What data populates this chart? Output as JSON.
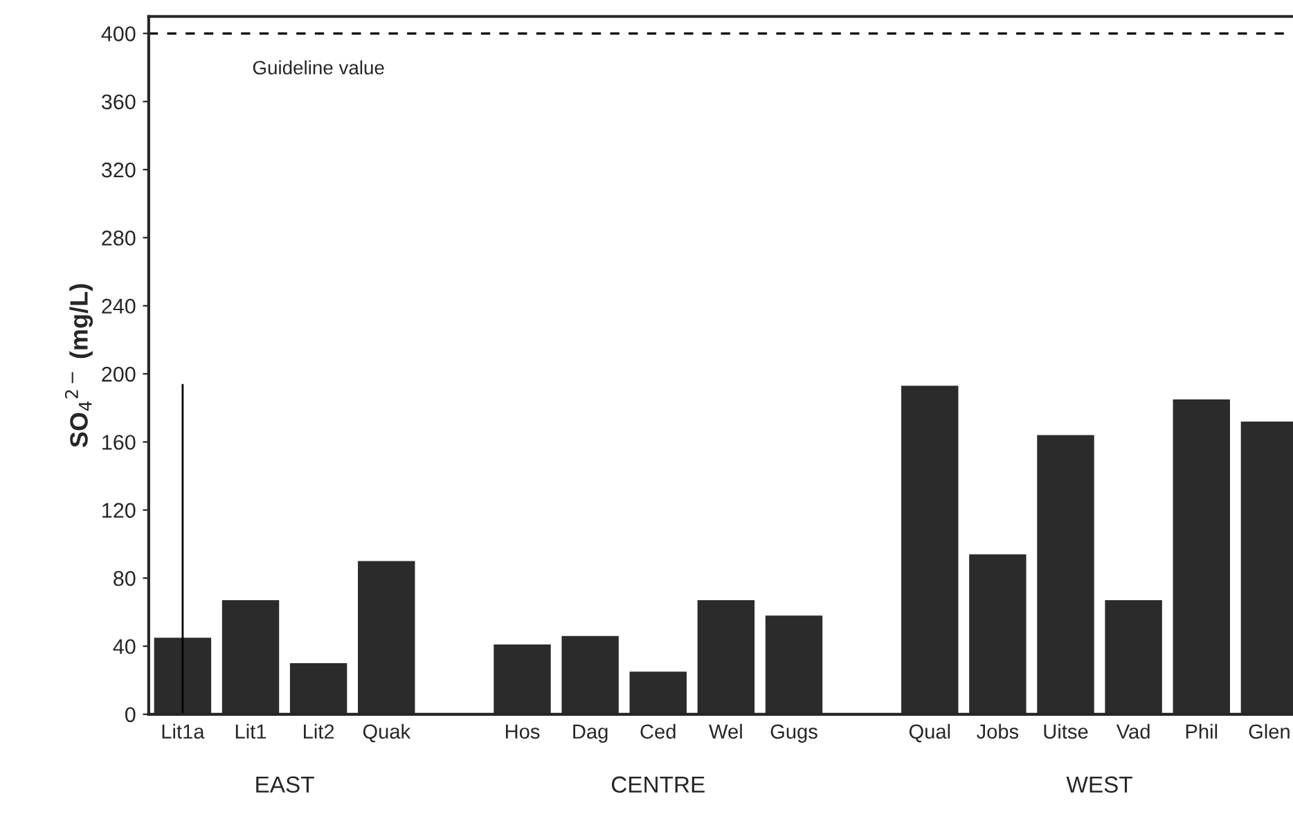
{
  "chart_data": {
    "type": "bar",
    "ylabel": "SO$_{4}$$^{2−}$ (mg/L)",
    "categories": [
      "Lit1a",
      "Lit1",
      "Lit2",
      "Quak",
      null,
      "Hos",
      "Dag",
      "Ced",
      "Wel",
      "Gugs",
      null,
      "Qual",
      "Jobs",
      "Uitse",
      "Vad",
      "Phil",
      "Glen"
    ],
    "values": [
      45,
      67,
      30,
      90,
      null,
      41,
      46,
      25,
      67,
      58,
      null,
      193,
      94,
      164,
      67,
      185,
      172
    ],
    "errors": [
      [
        0,
        194
      ],
      null,
      null,
      null,
      null,
      null,
      null,
      null,
      null,
      null,
      null,
      null,
      null,
      null,
      null,
      null,
      null
    ],
    "color": "#2b2b2b",
    "ylim": [
      0,
      410
    ],
    "yticks": [
      0,
      40,
      80,
      120,
      160,
      200,
      240,
      280,
      320,
      360,
      400
    ],
    "grid": false,
    "ref_lines": [
      {
        "axis": "y",
        "value": 400,
        "label": "Guideline value",
        "color": "#000000",
        "line_style": "dashed"
      }
    ],
    "annotations": [
      "EAST",
      "CENTRE",
      "WEST"
    ]
  }
}
